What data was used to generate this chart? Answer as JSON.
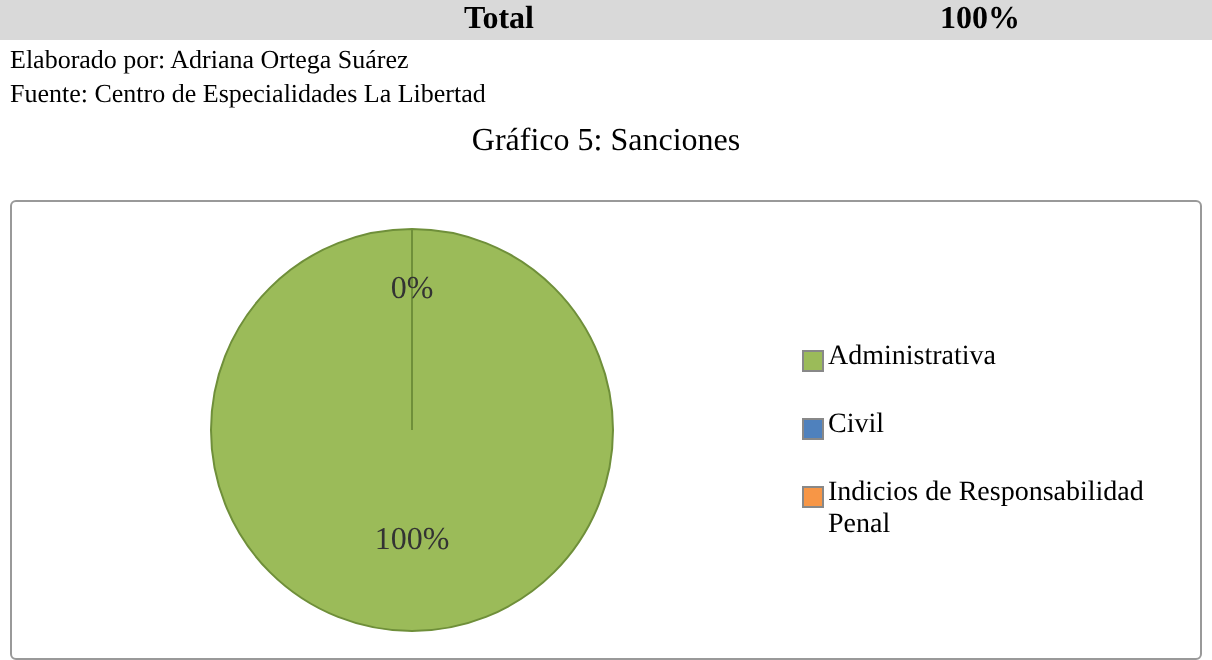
{
  "chart_data": {
    "type": "pie",
    "title": "Gráfico 5: Sanciones",
    "categories": [
      "Administrativa",
      "Civil",
      "Indicios de Responsabilidad Penal"
    ],
    "values": [
      100,
      0,
      0
    ],
    "colors": [
      "#9bbb59",
      "#4f81bd",
      "#f79646"
    ],
    "value_labels": [
      "100%",
      "0%",
      null
    ],
    "legend": "right",
    "annotations": [
      "Total",
      "100%",
      "Elaborado por: Adriana Ortega Suárez",
      "Fuente: Centro de Especialidades La Libertad"
    ]
  }
}
